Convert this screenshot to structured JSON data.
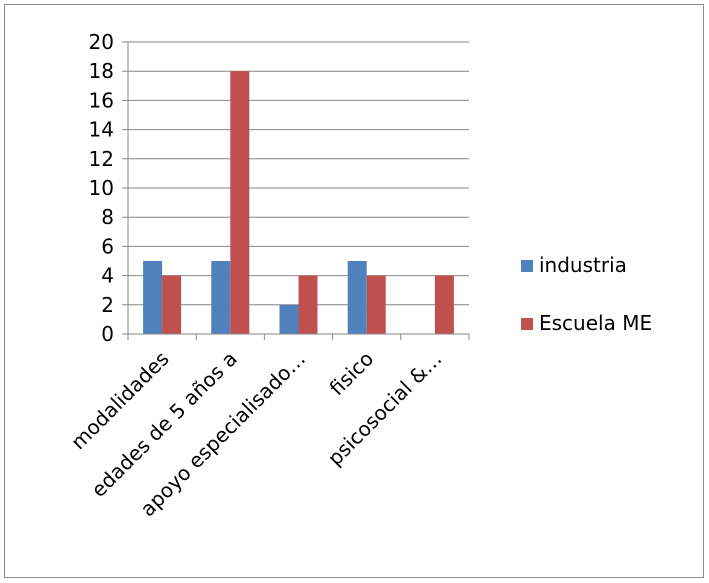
{
  "chart_data": {
    "type": "bar",
    "categories": [
      "modalidades",
      "edades de 5 años a",
      "apoyo especialisado…",
      "fisico",
      "psicosocial &…"
    ],
    "series": [
      {
        "name": "industria",
        "values": [
          5,
          5,
          2,
          5,
          0
        ],
        "color": "#4f81bd"
      },
      {
        "name": "Escuela ME",
        "values": [
          4,
          18,
          4,
          4,
          4
        ],
        "color": "#c0504d"
      }
    ],
    "ylim": [
      0,
      20
    ],
    "yticks": [
      0,
      2,
      4,
      6,
      8,
      10,
      12,
      14,
      16,
      18,
      20
    ],
    "grid": true,
    "legend": "right"
  }
}
